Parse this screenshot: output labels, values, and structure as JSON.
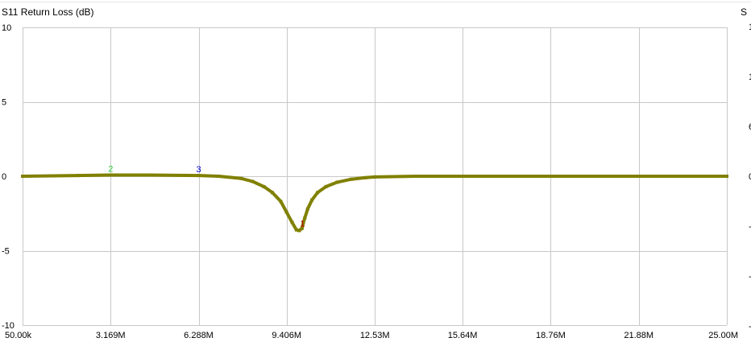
{
  "chart_data": {
    "type": "line",
    "title": "S11 Return Loss (dB)",
    "right_title": "S",
    "xlabel": "",
    "ylabel": "",
    "x_tick_labels": [
      "50.00k",
      "3.169M",
      "6.288M",
      "9.406M",
      "12.53M",
      "15.64M",
      "18.76M",
      "21.88M",
      "25.00M"
    ],
    "x_ticks_hz": [
      50000,
      3169000,
      6288000,
      9406000,
      12530000,
      15640000,
      18760000,
      21880000,
      25000000
    ],
    "xlim": [
      50000,
      25000000
    ],
    "y_tick_labels": [
      "10",
      "5",
      "0",
      "-5",
      "-10"
    ],
    "y_ticks": [
      10,
      5,
      0,
      -5,
      -10
    ],
    "ylim": [
      -10,
      10
    ],
    "grid": true,
    "series": [
      {
        "color": "#808000",
        "x": [
          50000,
          2000000,
          3169000,
          4500000,
          6288000,
          7000000,
          7800000,
          8200000,
          8600000,
          8900000,
          9200000,
          9400000,
          9600000,
          9750000,
          9850000,
          9950000,
          10000000,
          10050000,
          10150000,
          10300000,
          10500000,
          10800000,
          11200000,
          11700000,
          12200000,
          12530000,
          14000000,
          18760000,
          25000000
        ],
        "y": [
          0.0,
          0.05,
          0.08,
          0.08,
          0.05,
          0.0,
          -0.15,
          -0.35,
          -0.7,
          -1.1,
          -1.7,
          -2.4,
          -3.1,
          -3.6,
          -3.65,
          -3.5,
          -3.1,
          -2.8,
          -2.2,
          -1.6,
          -1.1,
          -0.7,
          -0.4,
          -0.2,
          -0.1,
          -0.05,
          0.0,
          0.0,
          0.0
        ]
      }
    ],
    "markers": [
      {
        "label": "1",
        "x": 9970000,
        "y": -3.6,
        "color": "#c00000"
      },
      {
        "label": "2",
        "x": 3169000,
        "y": 0.08,
        "color": "#33cc33"
      },
      {
        "label": "3",
        "x": 6288000,
        "y": 0.05,
        "color": "#0000cc"
      }
    ]
  }
}
